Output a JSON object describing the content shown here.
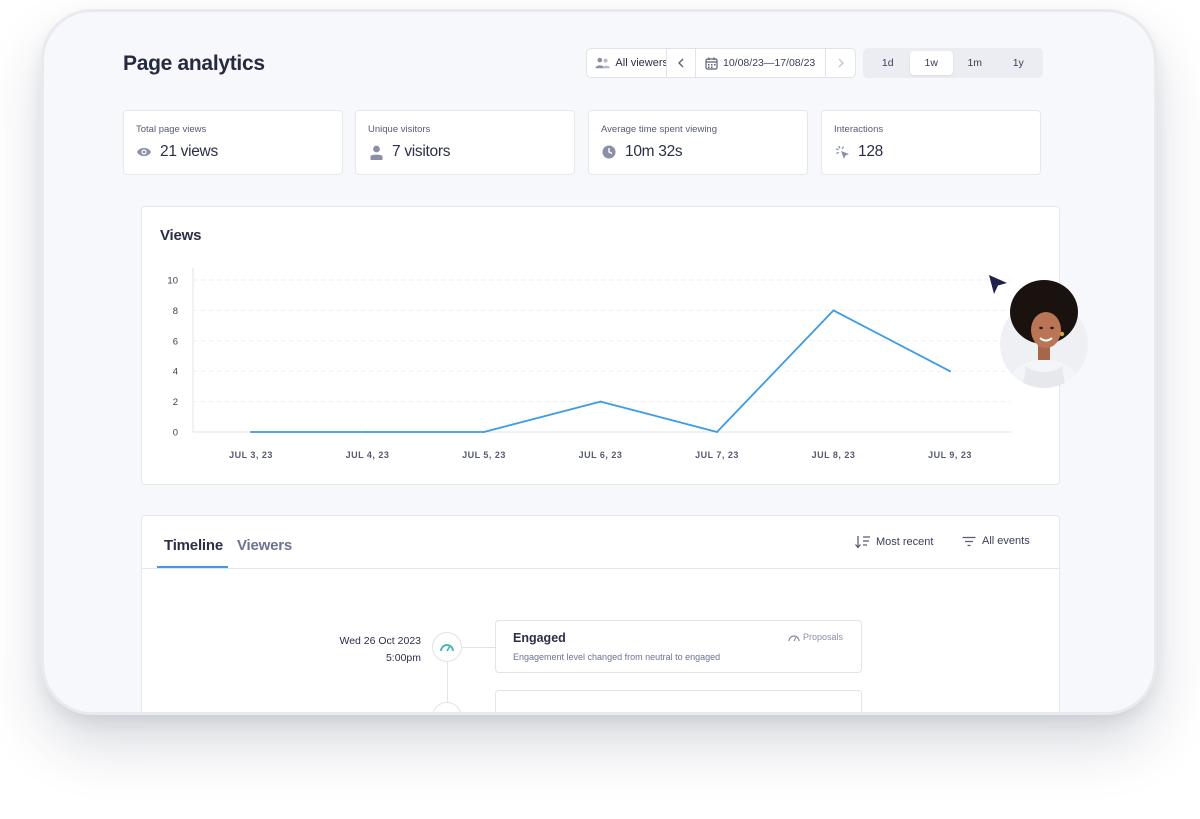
{
  "page": {
    "title": "Page analytics"
  },
  "toolbar": {
    "viewers_label": "All viewers",
    "date_range": "10/08/23—17/08/23",
    "periods": [
      {
        "label": "1d",
        "active": false
      },
      {
        "label": "1w",
        "active": true
      },
      {
        "label": "1m",
        "active": false
      },
      {
        "label": "1y",
        "active": false
      }
    ]
  },
  "stats": [
    {
      "label": "Total page views",
      "value": "21 views",
      "icon": "eye-icon"
    },
    {
      "label": "Unique visitors",
      "value": "7 visitors",
      "icon": "person-icon"
    },
    {
      "label": "Average time spent viewing",
      "value": "10m 32s",
      "icon": "clock-icon"
    },
    {
      "label": "Interactions",
      "value": "128",
      "icon": "click-icon"
    }
  ],
  "chart_data": {
    "type": "line",
    "title": "Views",
    "categories": [
      "JUL 3, 23",
      "JUL 4, 23",
      "JUL 5, 23",
      "JUL 6, 23",
      "JUL 7, 23",
      "JUL 8, 23",
      "JUL 9, 23"
    ],
    "series": [
      {
        "values": [
          0,
          0,
          0,
          2,
          0,
          8,
          4
        ]
      }
    ],
    "yticks": [
      0,
      2,
      4,
      6,
      8,
      10
    ],
    "ylim": [
      0,
      10
    ],
    "grid": true,
    "line_color": "#3c9ce6"
  },
  "timeline": {
    "tabs": [
      {
        "label": "Timeline",
        "active": true
      },
      {
        "label": "Viewers",
        "active": false
      }
    ],
    "sort_label": "Most recent",
    "filter_label": "All events",
    "events": [
      {
        "date": "Wed 26 Oct 2023",
        "time": "5:00pm",
        "title": "Engaged",
        "description": "Engagement level changed from neutral to engaged",
        "tag": "Proposals",
        "icon": "gauge-icon"
      }
    ]
  }
}
